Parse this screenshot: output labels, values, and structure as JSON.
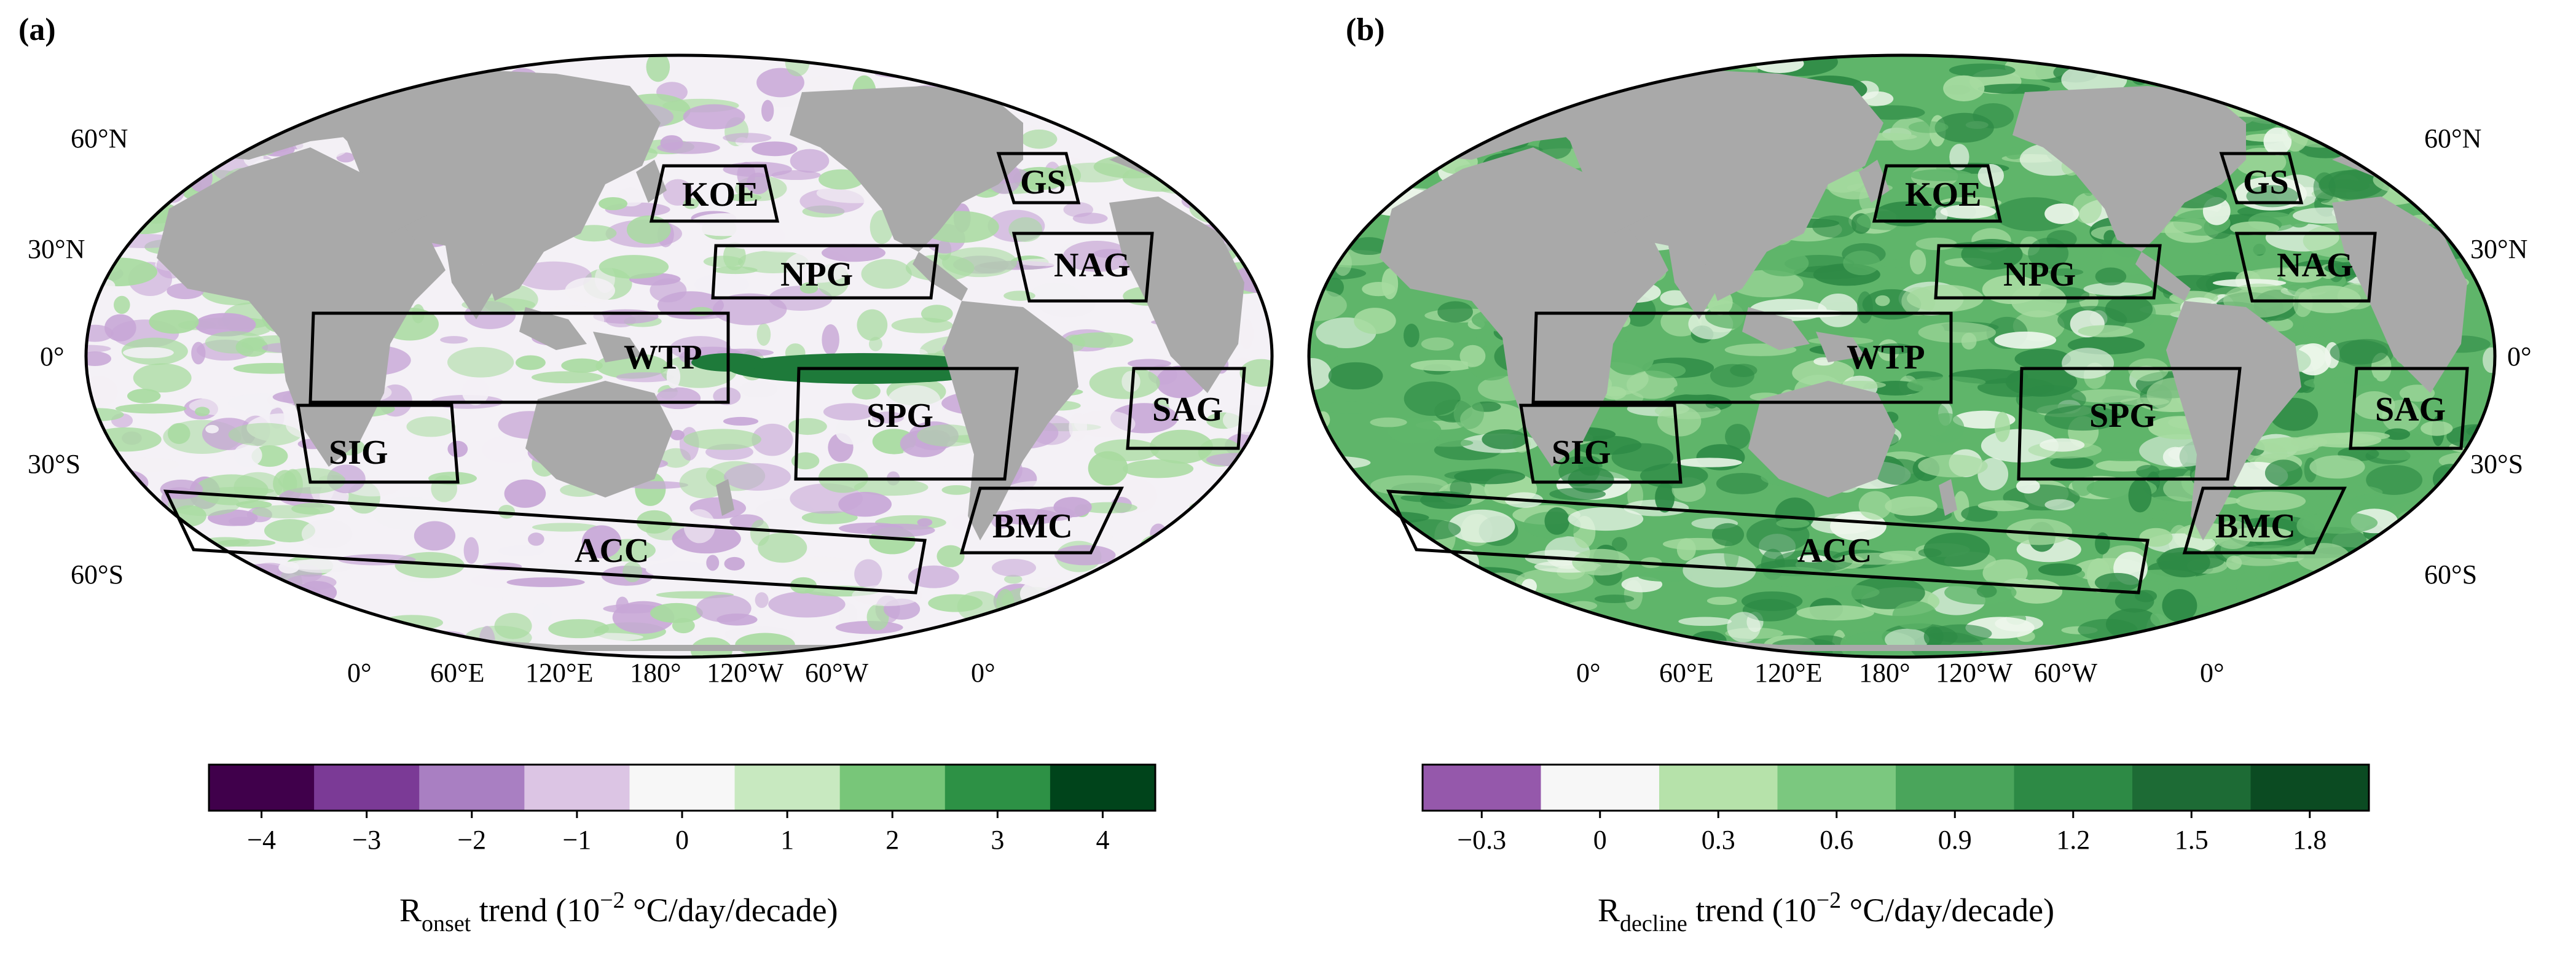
{
  "panels": [
    {
      "id": "a",
      "label": "(a)",
      "lat_labels_left": [
        "60°N",
        "30°N",
        "0°",
        "30°S",
        "60°S"
      ],
      "lon_labels": [
        "0°",
        "60°E",
        "120°E",
        "180°",
        "120°W",
        "60°W",
        "0°"
      ],
      "regions": [
        "KOE",
        "NPG",
        "GS",
        "NAG",
        "WTP",
        "SPG",
        "SAG",
        "SIG",
        "BMC",
        "ACC"
      ],
      "colorbar": {
        "ticks": [
          "−4",
          "−3",
          "−2",
          "−1",
          "0",
          "1",
          "2",
          "3",
          "4"
        ],
        "colors": [
          "#40004b",
          "#7b3a96",
          "#a97fc2",
          "#dcc5e4",
          "#f7f7f7",
          "#c8e9c0",
          "#78c679",
          "#2d9145",
          "#00441b"
        ],
        "title_main": "R",
        "title_sub": "onset",
        "title_rest": " trend (10",
        "title_exp": "−2",
        "title_units": " °C/day/decade)"
      },
      "field_colors": {
        "base": "#f3f0f5",
        "neg": "#c7a6d6",
        "pos": "#a8dba0",
        "strong_neg": "#6a2d85",
        "strong_pos": "#1e7a3a"
      }
    },
    {
      "id": "b",
      "label": "(b)",
      "lat_labels_right": [
        "60°N",
        "30°N",
        "0°",
        "30°S",
        "60°S"
      ],
      "lon_labels": [
        "0°",
        "60°E",
        "120°E",
        "180°",
        "120°W",
        "60°W",
        "0°"
      ],
      "regions": [
        "KOE",
        "NPG",
        "GS",
        "NAG",
        "WTP",
        "SPG",
        "SAG",
        "SIG",
        "BMC",
        "ACC"
      ],
      "colorbar": {
        "ticks": [
          "−0.3",
          "0",
          "0.3",
          "0.6",
          "0.9",
          "1.2",
          "1.5",
          "1.8"
        ],
        "colors": [
          "#9558ab",
          "#f7f7f7",
          "#b6e2aa",
          "#7bc87f",
          "#4aa55b",
          "#2d8a45",
          "#1d6b35",
          "#0b4b22"
        ],
        "title_main": "R",
        "title_sub": "decline",
        "title_rest": " trend (10",
        "title_exp": "−2",
        "title_units": " °C/day/decade)"
      },
      "field_colors": {
        "base": "#5fb56a",
        "light": "#a6dba0",
        "dark": "#2d8a45",
        "white": "#eef7ec"
      }
    }
  ],
  "land_color": "#a9a9a9"
}
